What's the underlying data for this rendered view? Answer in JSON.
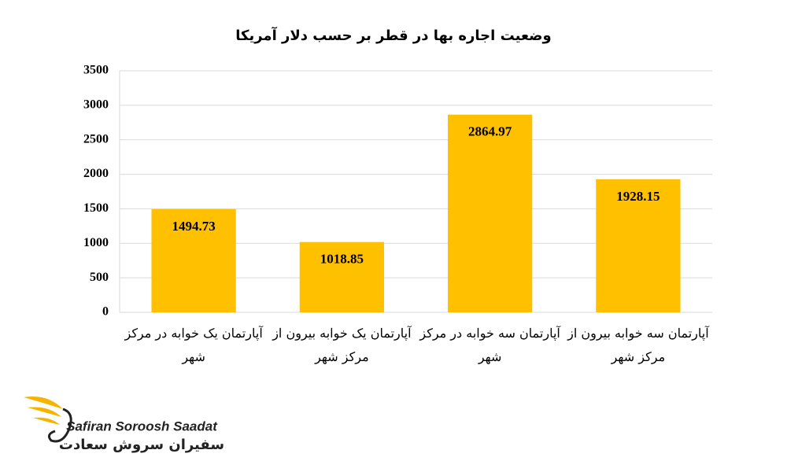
{
  "chart_data": {
    "type": "bar",
    "title": "وضعیت اجاره بها در قطر بر حسب دلار آمریکا",
    "categories": [
      "آپارتمان یک خوابه در مرکز شهر",
      "آپارتمان یک خوابه بیرون از مرکز شهر",
      "آپارتمان سه خوابه در مرکز شهر",
      "آپارتمان سه خوابه بیرون از مرکز شهر"
    ],
    "values": [
      1494.73,
      1018.85,
      2864.97,
      1928.15
    ],
    "color": "#ffc000",
    "ylim": [
      0,
      3500
    ],
    "yticks": [
      0,
      500,
      1000,
      1500,
      2000,
      2500,
      3000,
      3500
    ],
    "grid": true
  },
  "logo": {
    "latin": "Safiran Soroosh Saadat",
    "persian": "سفیران سروش سعادت"
  }
}
